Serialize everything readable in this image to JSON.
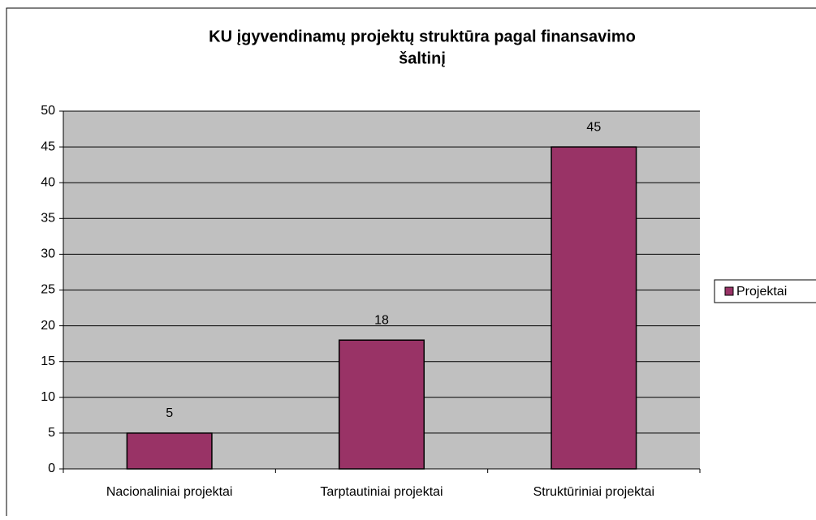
{
  "chart_data": {
    "type": "bar",
    "title": [
      "KU įgyvendinamų projektų struktūra pagal finansavimo",
      "šaltinį"
    ],
    "categories": [
      "Nacionaliniai projektai",
      "Tarptautiniai projektai",
      "Struktūriniai projektai"
    ],
    "series": [
      {
        "name": "Projektai",
        "color": "#993366",
        "values": [
          5,
          18,
          45
        ]
      }
    ],
    "ylim": [
      0,
      50
    ],
    "yticks": [
      0,
      5,
      10,
      15,
      20,
      25,
      30,
      35,
      40,
      45,
      50
    ],
    "grid": true,
    "legend": "right"
  }
}
